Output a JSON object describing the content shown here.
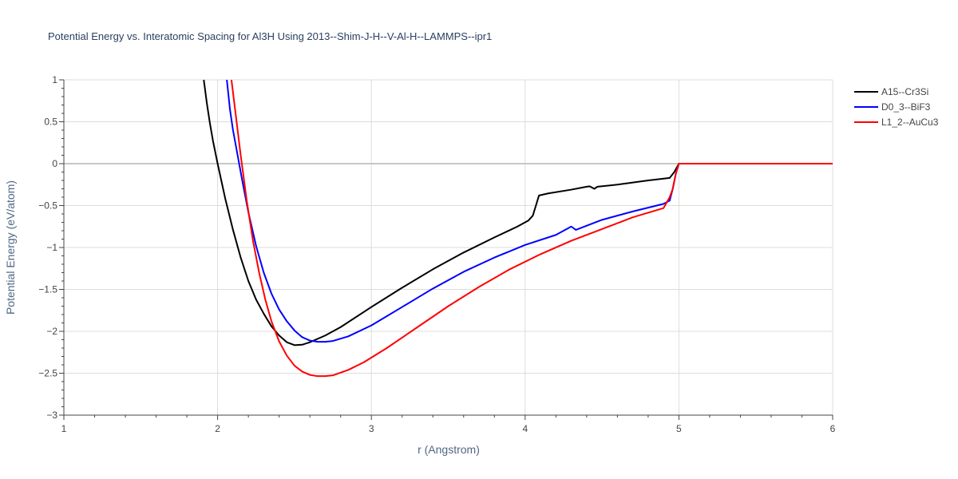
{
  "chart_data": {
    "type": "line",
    "title": "Potential Energy vs. Interatomic Spacing for Al3H Using 2013--Shim-J-H--V-Al-H--LAMMPS--ipr1",
    "xlabel": "r (Angstrom)",
    "ylabel": "Potential Energy (eV/atom)",
    "xlim": [
      1,
      6
    ],
    "ylim": [
      -3,
      1
    ],
    "xticks": [
      "1",
      "2",
      "3",
      "4",
      "5",
      "6"
    ],
    "yticks": [
      "1",
      "0.5",
      "0",
      "−0.5",
      "−1",
      "−1.5",
      "−2",
      "−2.5",
      "−3"
    ],
    "grid": true,
    "legend_position": "top-right",
    "series": [
      {
        "name": "A15--Cr3Si",
        "color": "#000000",
        "points": [
          [
            1.91,
            1.0
          ],
          [
            1.93,
            0.72
          ],
          [
            1.95,
            0.48
          ],
          [
            1.97,
            0.27
          ],
          [
            2.0,
            0.0
          ],
          [
            2.05,
            -0.42
          ],
          [
            2.1,
            -0.79
          ],
          [
            2.15,
            -1.12
          ],
          [
            2.2,
            -1.4
          ],
          [
            2.25,
            -1.62
          ],
          [
            2.3,
            -1.79
          ],
          [
            2.35,
            -1.94
          ],
          [
            2.4,
            -2.05
          ],
          [
            2.45,
            -2.13
          ],
          [
            2.5,
            -2.165
          ],
          [
            2.55,
            -2.16
          ],
          [
            2.6,
            -2.13
          ],
          [
            2.7,
            -2.05
          ],
          [
            2.8,
            -1.95
          ],
          [
            3.0,
            -1.71
          ],
          [
            3.2,
            -1.48
          ],
          [
            3.4,
            -1.26
          ],
          [
            3.6,
            -1.06
          ],
          [
            3.8,
            -0.88
          ],
          [
            3.95,
            -0.75
          ],
          [
            4.02,
            -0.68
          ],
          [
            4.05,
            -0.62
          ],
          [
            4.07,
            -0.5
          ],
          [
            4.09,
            -0.38
          ],
          [
            4.15,
            -0.355
          ],
          [
            4.3,
            -0.31
          ],
          [
            4.4,
            -0.275
          ],
          [
            4.42,
            -0.27
          ],
          [
            4.45,
            -0.3
          ],
          [
            4.47,
            -0.275
          ],
          [
            4.6,
            -0.25
          ],
          [
            4.8,
            -0.2
          ],
          [
            4.94,
            -0.17
          ],
          [
            4.97,
            -0.1
          ],
          [
            5.0,
            0.0
          ],
          [
            6.0,
            0.0
          ]
        ]
      },
      {
        "name": "D0_3--BiF3",
        "color": "#0000ff",
        "points": [
          [
            2.06,
            1.0
          ],
          [
            2.08,
            0.65
          ],
          [
            2.1,
            0.4
          ],
          [
            2.13,
            0.1
          ],
          [
            2.16,
            -0.2
          ],
          [
            2.2,
            -0.58
          ],
          [
            2.25,
            -0.98
          ],
          [
            2.3,
            -1.3
          ],
          [
            2.35,
            -1.55
          ],
          [
            2.4,
            -1.74
          ],
          [
            2.45,
            -1.88
          ],
          [
            2.5,
            -1.99
          ],
          [
            2.55,
            -2.07
          ],
          [
            2.6,
            -2.11
          ],
          [
            2.65,
            -2.125
          ],
          [
            2.7,
            -2.125
          ],
          [
            2.75,
            -2.115
          ],
          [
            2.85,
            -2.06
          ],
          [
            3.0,
            -1.93
          ],
          [
            3.2,
            -1.71
          ],
          [
            3.4,
            -1.49
          ],
          [
            3.6,
            -1.29
          ],
          [
            3.8,
            -1.12
          ],
          [
            4.0,
            -0.97
          ],
          [
            4.2,
            -0.85
          ],
          [
            4.3,
            -0.75
          ],
          [
            4.33,
            -0.79
          ],
          [
            4.5,
            -0.67
          ],
          [
            4.7,
            -0.57
          ],
          [
            4.9,
            -0.48
          ],
          [
            4.94,
            -0.44
          ],
          [
            4.96,
            -0.3
          ],
          [
            4.98,
            -0.12
          ],
          [
            5.0,
            0.0
          ],
          [
            6.0,
            0.0
          ]
        ]
      },
      {
        "name": "L1_2--AuCu3",
        "color": "#ff0000",
        "points": [
          [
            2.09,
            1.0
          ],
          [
            2.12,
            0.55
          ],
          [
            2.15,
            0.1
          ],
          [
            2.19,
            -0.45
          ],
          [
            2.23,
            -0.92
          ],
          [
            2.27,
            -1.3
          ],
          [
            2.31,
            -1.62
          ],
          [
            2.35,
            -1.88
          ],
          [
            2.4,
            -2.12
          ],
          [
            2.45,
            -2.29
          ],
          [
            2.5,
            -2.41
          ],
          [
            2.55,
            -2.48
          ],
          [
            2.6,
            -2.52
          ],
          [
            2.65,
            -2.535
          ],
          [
            2.7,
            -2.535
          ],
          [
            2.75,
            -2.525
          ],
          [
            2.85,
            -2.46
          ],
          [
            2.95,
            -2.37
          ],
          [
            3.1,
            -2.2
          ],
          [
            3.3,
            -1.95
          ],
          [
            3.5,
            -1.7
          ],
          [
            3.7,
            -1.47
          ],
          [
            3.9,
            -1.26
          ],
          [
            4.1,
            -1.08
          ],
          [
            4.3,
            -0.92
          ],
          [
            4.5,
            -0.78
          ],
          [
            4.7,
            -0.64
          ],
          [
            4.9,
            -0.53
          ],
          [
            4.94,
            -0.4
          ],
          [
            4.96,
            -0.3
          ],
          [
            4.98,
            -0.12
          ],
          [
            5.0,
            0.0
          ],
          [
            6.0,
            0.0
          ]
        ]
      }
    ]
  }
}
